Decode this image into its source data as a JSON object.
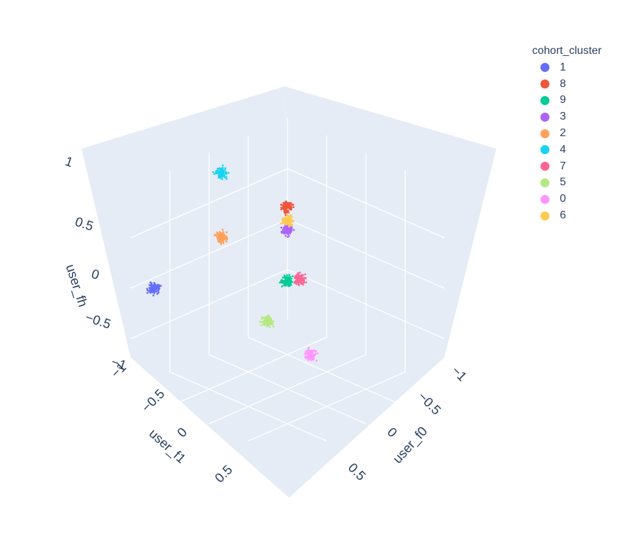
{
  "chart_data": {
    "type": "scatter3d",
    "legend": {
      "title": "cohort_cluster",
      "placement": "top-right"
    },
    "axes": {
      "x": {
        "label": "user_f0",
        "range": [
          -1,
          1
        ],
        "ticks": [
          "−1",
          "−0.5",
          "0",
          "0.5"
        ]
      },
      "y": {
        "label": "user_f1",
        "range": [
          -1,
          1
        ],
        "ticks": [
          "−1",
          "−0.5",
          "0",
          "0.5"
        ]
      },
      "z": {
        "label": "user_fh",
        "range": [
          -1,
          1
        ],
        "ticks": [
          "−1",
          "−0.5",
          "0",
          "0.5",
          "1"
        ]
      }
    },
    "grid": true,
    "background_color": "#e5ecf6",
    "series": [
      {
        "name": "1",
        "color": "#636efa",
        "center": [
          -0.85,
          0.85,
          0.0
        ]
      },
      {
        "name": "8",
        "color": "#ef553b",
        "center": [
          0.0,
          0.0,
          0.8
        ]
      },
      {
        "name": "9",
        "color": "#00cc96",
        "center": [
          -0.1,
          -0.1,
          0.0
        ]
      },
      {
        "name": "3",
        "color": "#ab63fa",
        "center": [
          -0.85,
          -0.85,
          0.0
        ]
      },
      {
        "name": "2",
        "color": "#ffa15a",
        "center": [
          0.0,
          0.85,
          0.8
        ]
      },
      {
        "name": "4",
        "color": "#19d3f3",
        "center": [
          -0.85,
          0.0,
          0.85
        ]
      },
      {
        "name": "7",
        "color": "#ff6692",
        "center": [
          0.45,
          0.3,
          0.35
        ]
      },
      {
        "name": "5",
        "color": "#b6e880",
        "center": [
          0.2,
          0.45,
          -0.1
        ]
      },
      {
        "name": "0",
        "color": "#ff97ff",
        "center": [
          0.45,
          0.15,
          -0.45
        ]
      },
      {
        "name": "6",
        "color": "#fecb52",
        "center": [
          -0.1,
          -0.1,
          0.6
        ]
      }
    ]
  }
}
